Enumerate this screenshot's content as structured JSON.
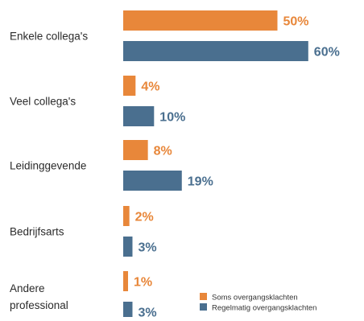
{
  "chart_data": {
    "type": "bar",
    "orientation": "horizontal",
    "categories": [
      [
        "Enkele collega's"
      ],
      [
        "Veel collega's"
      ],
      [
        "Leidinggevende"
      ],
      [
        "Bedrijfsarts"
      ],
      [
        "Andere",
        "professional"
      ]
    ],
    "series": [
      {
        "name": "Soms overgangsklachten",
        "color": "#E8873A",
        "values": [
          50,
          4,
          8,
          2,
          1
        ],
        "labels": [
          "50%",
          "4%",
          "8%",
          "2%",
          "1%"
        ]
      },
      {
        "name": "Regelmatig overgangsklachten",
        "color": "#4A6F8F",
        "values": [
          60,
          10,
          19,
          3,
          3
        ],
        "labels": [
          "60%",
          "10%",
          "19%",
          "3%",
          "3%"
        ]
      }
    ],
    "xlim": [
      0,
      60
    ],
    "grid": false,
    "legend": "bottom-right",
    "title": "",
    "xlabel": "",
    "ylabel": ""
  }
}
